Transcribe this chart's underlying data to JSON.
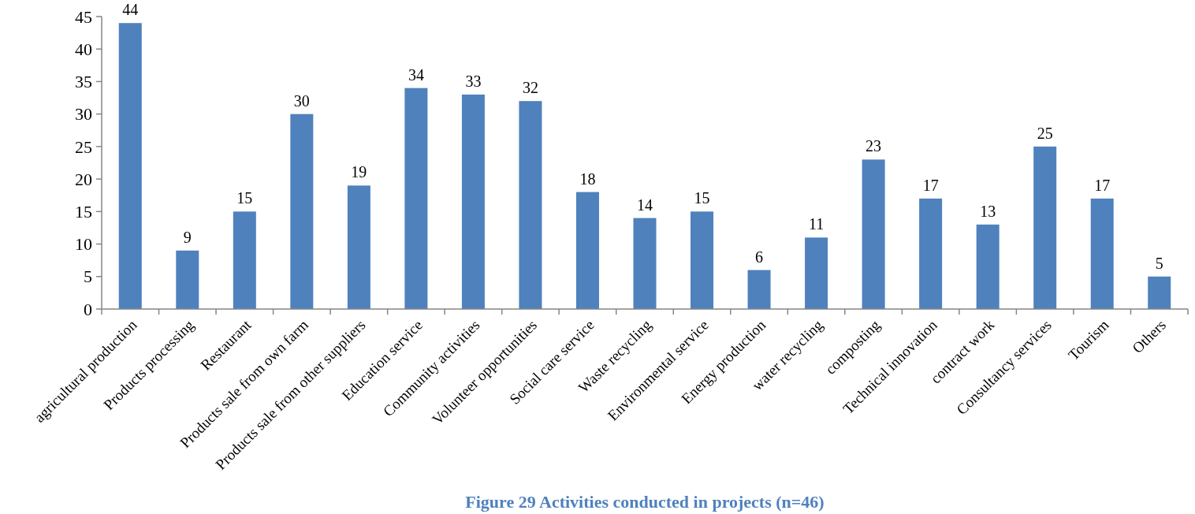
{
  "chart_data": {
    "type": "bar",
    "title": "Figure 29 Activities conducted in projects (n=46)",
    "categories": [
      "agricultural production",
      "Products processing",
      "Restaurant",
      "Products sale from own farm",
      "Products sale from other suppliers",
      "Education service",
      "Community activities",
      "Volunteer opportunities",
      "Social care service",
      "Waste recycling",
      "Environmental service",
      "Energy production",
      "water recycling",
      "composting",
      "Technical innovation",
      "contract work",
      "Consultancy services",
      "Tourism",
      "Others"
    ],
    "values": [
      44,
      9,
      15,
      30,
      19,
      34,
      33,
      32,
      18,
      14,
      15,
      6,
      11,
      23,
      17,
      13,
      25,
      17,
      5
    ],
    "color": "#4f81bd",
    "ylim": [
      0,
      45
    ],
    "yticks": [
      0,
      5,
      10,
      15,
      20,
      25,
      30,
      35,
      40,
      45
    ],
    "data_labels": true
  }
}
